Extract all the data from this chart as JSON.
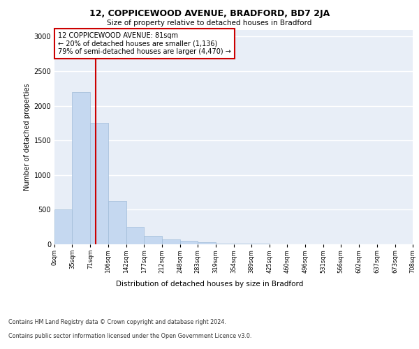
{
  "title1": "12, COPPICEWOOD AVENUE, BRADFORD, BD7 2JA",
  "title2": "Size of property relative to detached houses in Bradford",
  "xlabel": "Distribution of detached houses by size in Bradford",
  "ylabel": "Number of detached properties",
  "bar_color": "#c5d8f0",
  "bar_edge_color": "#a0bcd8",
  "background_color": "#e8eef7",
  "grid_color": "#ffffff",
  "annotation_box_color": "#cc0000",
  "property_line_color": "#cc0000",
  "property_sqm": 81,
  "annotation_text": "12 COPPICEWOOD AVENUE: 81sqm\n← 20% of detached houses are smaller (1,136)\n79% of semi-detached houses are larger (4,470) →",
  "footer1": "Contains HM Land Registry data © Crown copyright and database right 2024.",
  "footer2": "Contains public sector information licensed under the Open Government Licence v3.0.",
  "bin_labels": [
    "0sqm",
    "35sqm",
    "71sqm",
    "106sqm",
    "142sqm",
    "177sqm",
    "212sqm",
    "248sqm",
    "283sqm",
    "319sqm",
    "354sqm",
    "389sqm",
    "425sqm",
    "460sqm",
    "496sqm",
    "531sqm",
    "566sqm",
    "602sqm",
    "637sqm",
    "673sqm",
    "708sqm"
  ],
  "bin_edges": [
    0,
    35,
    71,
    106,
    142,
    177,
    212,
    248,
    283,
    319,
    354,
    389,
    425,
    460,
    496,
    531,
    566,
    602,
    637,
    673,
    708
  ],
  "bar_heights": [
    500,
    2200,
    1750,
    625,
    250,
    125,
    75,
    50,
    30,
    15,
    8,
    8,
    5,
    3,
    2,
    2,
    1,
    1,
    1,
    1
  ],
  "ylim": [
    0,
    3100
  ],
  "yticks": [
    0,
    500,
    1000,
    1500,
    2000,
    2500,
    3000
  ]
}
